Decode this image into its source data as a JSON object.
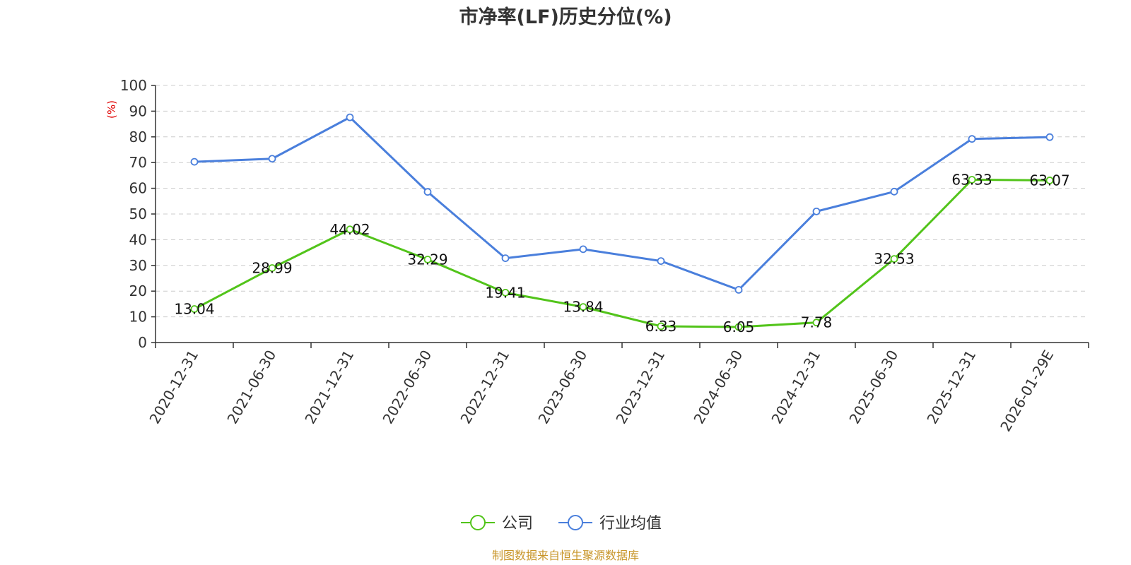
{
  "chart_data": {
    "type": "line",
    "title": "市净率(LF)历史分位(%)",
    "ylabel": "(%)",
    "ylim": [
      0,
      100
    ],
    "yticks": [
      0,
      10,
      20,
      30,
      40,
      50,
      60,
      70,
      80,
      90,
      100
    ],
    "grid": true,
    "legend_position": "bottom-center",
    "categories": [
      "2020-12-31",
      "2021-06-30",
      "2021-12-31",
      "2022-06-30",
      "2022-12-31",
      "2023-06-30",
      "2023-12-31",
      "2024-06-30",
      "2024-12-31",
      "2025-06-30",
      "2025-12-31",
      "2026-01-29E"
    ],
    "series": [
      {
        "name": "公司",
        "color": "#52c41a",
        "show_labels": true,
        "values": [
          13.04,
          28.99,
          44.02,
          32.29,
          19.41,
          13.84,
          6.33,
          6.05,
          7.78,
          32.53,
          63.33,
          63.07
        ],
        "labels": [
          "13.04",
          "28.99",
          "44.02",
          "32.29",
          "19.41",
          "13.84",
          "6.33",
          "6.05",
          "7.78",
          "32.53",
          "63.33",
          "63.07"
        ]
      },
      {
        "name": "行业均值",
        "color": "#4a7fdc",
        "show_labels": false,
        "values": [
          70.3,
          71.5,
          87.6,
          58.6,
          32.8,
          36.3,
          31.7,
          20.5,
          51.0,
          58.7,
          79.2,
          79.9
        ]
      }
    ],
    "source": "制图数据来自恒生聚源数据库"
  }
}
